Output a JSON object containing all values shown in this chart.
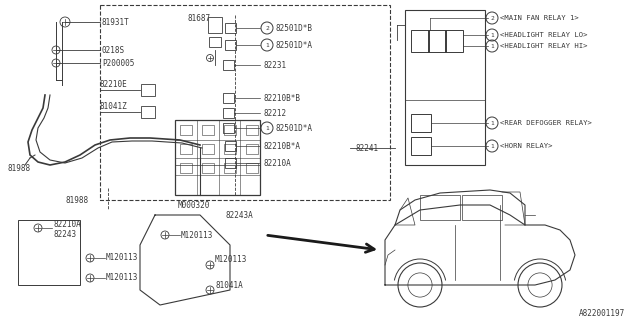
{
  "bg_color": "#ffffff",
  "line_color": "#3a3a3a",
  "footer_text": "A822001197",
  "relay_items": [
    {
      "num": "2",
      "label": "<MAIN FAN RELAY 1>"
    },
    {
      "num": "1",
      "label": "<HEADLIGHT RELAY LO>"
    },
    {
      "num": "1",
      "label": "<HEADLIGHT RELAY HI>"
    },
    {
      "num": "1",
      "label": "<REAR DEFOGGER RELAY>"
    },
    {
      "num": "1",
      "label": "<HORN RELAY>"
    }
  ],
  "center_items": [
    {
      "num": "2",
      "label": "82501D*B",
      "has_circle": true
    },
    {
      "num": "1",
      "label": "82501D*A",
      "has_circle": true
    },
    {
      "num": "",
      "label": "82231",
      "has_circle": false
    },
    {
      "num": "",
      "label": "82210B*B",
      "has_circle": false
    },
    {
      "num": "",
      "label": "82212",
      "has_circle": false
    },
    {
      "num": "1",
      "label": "82501D*A",
      "has_circle": true
    },
    {
      "num": "",
      "label": "82210B*A",
      "has_circle": false
    },
    {
      "num": "",
      "label": "82210A",
      "has_circle": false
    }
  ],
  "fig_w": 6.4,
  "fig_h": 3.2,
  "dpi": 100
}
